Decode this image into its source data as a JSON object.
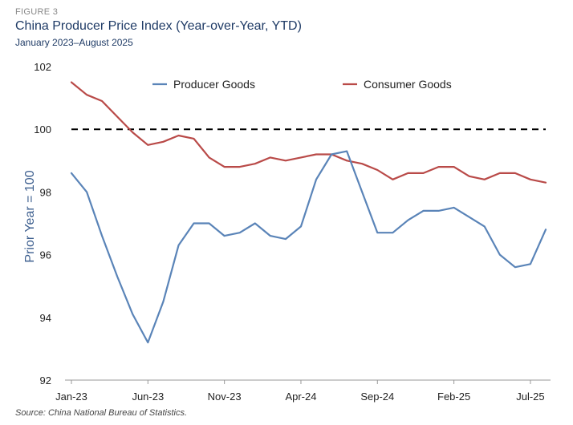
{
  "figure_label": "FIGURE 3",
  "source": "Source: China National Bureau of Statistics.",
  "colors": {
    "producer": "#5a84b8",
    "consumer": "#b94a48",
    "reference": "#000000",
    "axis": "#999999"
  },
  "chart_data": {
    "type": "line",
    "title": "China Producer Price Index (Year-over-Year, YTD)",
    "subtitle": "January 2023–August 2025",
    "xlabel": "",
    "ylabel": "Prior Year = 100",
    "ylim": [
      92,
      102
    ],
    "yticks": [
      92,
      94,
      96,
      98,
      100,
      102
    ],
    "x": [
      "Jan-23",
      "Feb-23",
      "Mar-23",
      "Apr-23",
      "May-23",
      "Jun-23",
      "Jul-23",
      "Aug-23",
      "Sep-23",
      "Oct-23",
      "Nov-23",
      "Dec-23",
      "Jan-24",
      "Feb-24",
      "Mar-24",
      "Apr-24",
      "May-24",
      "Jun-24",
      "Jul-24",
      "Aug-24",
      "Sep-24",
      "Oct-24",
      "Nov-24",
      "Dec-24",
      "Jan-25",
      "Feb-25",
      "Mar-25",
      "Apr-25",
      "May-25",
      "Jun-25",
      "Jul-25",
      "Aug-25"
    ],
    "xtick_labels": [
      "Jan-23",
      "Jun-23",
      "Nov-23",
      "Apr-24",
      "Sep-24",
      "Feb-25",
      "Jul-25"
    ],
    "xtick_indices": [
      0,
      5,
      10,
      15,
      20,
      25,
      30
    ],
    "reference_line": 100,
    "legend_position": "top",
    "grid": false,
    "series": [
      {
        "name": "Producer Goods",
        "color": "#5a84b8",
        "values": [
          98.6,
          98.0,
          96.6,
          95.3,
          94.1,
          93.2,
          94.5,
          96.3,
          97.0,
          97.0,
          96.6,
          96.7,
          97.0,
          96.6,
          96.5,
          96.9,
          98.4,
          99.2,
          99.3,
          98.0,
          96.7,
          96.7,
          97.1,
          97.4,
          97.4,
          97.5,
          97.2,
          96.9,
          96.0,
          95.6,
          95.7,
          96.8
        ]
      },
      {
        "name": "Consumer Goods",
        "color": "#b94a48",
        "values": [
          101.5,
          101.1,
          100.9,
          100.4,
          99.9,
          99.5,
          99.6,
          99.8,
          99.7,
          99.1,
          98.8,
          98.8,
          98.9,
          99.1,
          99.0,
          99.1,
          99.2,
          99.2,
          99.0,
          98.9,
          98.7,
          98.4,
          98.6,
          98.6,
          98.8,
          98.8,
          98.5,
          98.4,
          98.6,
          98.6,
          98.4,
          98.3
        ]
      }
    ]
  }
}
